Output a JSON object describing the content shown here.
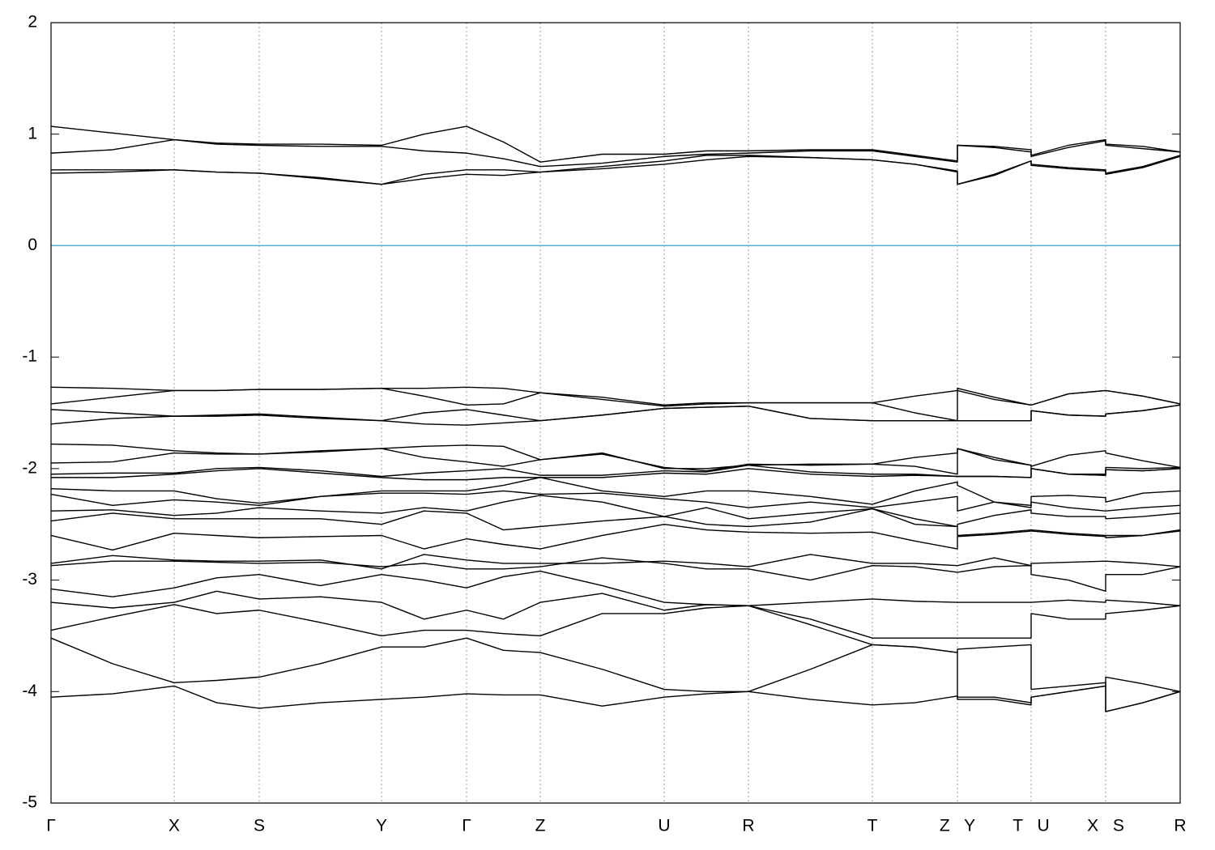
{
  "chart_data": {
    "type": "line",
    "color": "#000000",
    "grid_x": true,
    "reference_line": {
      "value": 0,
      "color": "#4fb3d0"
    },
    "xlim": [
      0,
      13.94
    ],
    "xticks": [
      {
        "value": 0,
        "label": "Γ"
      },
      {
        "value": 1.52,
        "label": "X"
      },
      {
        "value": 2.57,
        "label": "S"
      },
      {
        "value": 4.08,
        "label": "Y"
      },
      {
        "value": 5.13,
        "label": "Γ"
      },
      {
        "value": 6.04,
        "label": "Z"
      },
      {
        "value": 7.57,
        "label": "U"
      },
      {
        "value": 8.61,
        "label": "R"
      },
      {
        "value": 10.14,
        "label": "T"
      },
      {
        "value": 11.19,
        "label": "Z Y"
      },
      {
        "value": 12.1,
        "label": "T U"
      },
      {
        "value": 13.02,
        "label": "X S"
      },
      {
        "value": 13.94,
        "label": "R"
      }
    ],
    "ylim": [
      -5,
      2
    ],
    "yticks": [
      -5,
      -4,
      -3,
      -2,
      -1,
      0,
      1,
      2
    ],
    "x": [
      0,
      0.76,
      1.52,
      2.045,
      2.57,
      3.325,
      4.08,
      4.605,
      5.13,
      5.585,
      6.04,
      6.805,
      7.57,
      8.09,
      8.61,
      9.375,
      10.14,
      10.665,
      11.19,
      11.19,
      11.645,
      12.1,
      12.1,
      12.56,
      13.02,
      13.02,
      13.48,
      13.94
    ],
    "series": [
      {
        "values": [
          1.07,
          1.01,
          0.95,
          0.92,
          0.91,
          0.91,
          0.9,
          1.0,
          1.07,
          0.93,
          0.75,
          0.82,
          0.82,
          0.85,
          0.85,
          0.86,
          0.86,
          0.81,
          0.76,
          0.9,
          0.89,
          0.86,
          0.81,
          0.9,
          0.95,
          0.91,
          0.89,
          0.84
        ]
      },
      {
        "values": [
          0.83,
          0.86,
          0.95,
          0.91,
          0.9,
          0.89,
          0.89,
          0.85,
          0.83,
          0.78,
          0.71,
          0.74,
          0.8,
          0.82,
          0.83,
          0.85,
          0.85,
          0.8,
          0.75,
          0.9,
          0.88,
          0.84,
          0.8,
          0.88,
          0.94,
          0.9,
          0.87,
          0.84
        ]
      },
      {
        "values": [
          0.68,
          0.68,
          0.68,
          0.66,
          0.65,
          0.61,
          0.55,
          0.64,
          0.68,
          0.68,
          0.66,
          0.71,
          0.76,
          0.81,
          0.81,
          0.79,
          0.77,
          0.73,
          0.67,
          0.55,
          0.64,
          0.76,
          0.73,
          0.7,
          0.68,
          0.65,
          0.71,
          0.81
        ]
      },
      {
        "values": [
          0.65,
          0.66,
          0.68,
          0.66,
          0.65,
          0.6,
          0.55,
          0.6,
          0.64,
          0.63,
          0.66,
          0.69,
          0.73,
          0.77,
          0.8,
          0.79,
          0.77,
          0.73,
          0.66,
          0.55,
          0.63,
          0.76,
          0.72,
          0.69,
          0.67,
          0.64,
          0.7,
          0.8
        ]
      },
      {
        "values": [
          -1.27,
          -1.28,
          -1.3,
          -1.3,
          -1.29,
          -1.29,
          -1.28,
          -1.28,
          -1.27,
          -1.28,
          -1.32,
          -1.38,
          -1.44,
          -1.42,
          -1.41,
          -1.41,
          -1.41,
          -1.35,
          -1.3,
          -1.28,
          -1.36,
          -1.43,
          -1.43,
          -1.33,
          -1.3,
          -1.3,
          -1.35,
          -1.42
        ]
      },
      {
        "values": [
          -1.42,
          -1.36,
          -1.3,
          -1.3,
          -1.29,
          -1.29,
          -1.28,
          -1.35,
          -1.43,
          -1.42,
          -1.32,
          -1.36,
          -1.43,
          -1.41,
          -1.41,
          -1.41,
          -1.41,
          -1.5,
          -1.57,
          -1.57,
          -1.57,
          -1.57,
          -1.48,
          -1.52,
          -1.53,
          -1.51,
          -1.48,
          -1.43
        ]
      },
      {
        "values": [
          -1.47,
          -1.5,
          -1.53,
          -1.53,
          -1.52,
          -1.55,
          -1.57,
          -1.5,
          -1.47,
          -1.52,
          -1.57,
          -1.52,
          -1.46,
          -1.45,
          -1.44,
          -1.55,
          -1.57,
          -1.57,
          -1.57,
          -1.3,
          -1.38,
          -1.43,
          -1.43,
          -1.33,
          -1.3,
          -1.3,
          -1.35,
          -1.42
        ]
      },
      {
        "values": [
          -1.6,
          -1.55,
          -1.53,
          -1.52,
          -1.51,
          -1.54,
          -1.57,
          -1.6,
          -1.61,
          -1.59,
          -1.57,
          -1.52,
          -1.46,
          -1.45,
          -1.44,
          -1.55,
          -1.57,
          -1.57,
          -1.57,
          -1.57,
          -1.57,
          -1.57,
          -1.48,
          -1.52,
          -1.53,
          -1.51,
          -1.48,
          -1.43
        ]
      },
      {
        "values": [
          -1.78,
          -1.79,
          -1.84,
          -1.86,
          -1.87,
          -1.84,
          -1.82,
          -1.8,
          -1.79,
          -1.8,
          -1.92,
          -1.87,
          -1.99,
          -2.02,
          -1.96,
          -1.97,
          -1.96,
          -1.9,
          -1.86,
          -1.82,
          -1.92,
          -1.97,
          -1.98,
          -1.88,
          -1.84,
          -1.86,
          -1.93,
          -1.99
        ]
      },
      {
        "values": [
          -1.95,
          -1.94,
          -1.86,
          -1.87,
          -1.87,
          -1.85,
          -1.82,
          -1.9,
          -1.94,
          -1.98,
          -1.92,
          -1.86,
          -2.0,
          -2.0,
          -1.97,
          -1.96,
          -1.96,
          -1.98,
          -2.05,
          -1.82,
          -1.9,
          -1.97,
          -2.0,
          -2.05,
          -2.05,
          -1.99,
          -2.0,
          -1.99
        ]
      },
      {
        "values": [
          -2.05,
          -2.04,
          -2.04,
          -2.0,
          -1.99,
          -2.02,
          -2.07,
          -2.04,
          -2.02,
          -2.0,
          -2.06,
          -2.06,
          -2.02,
          -2.03,
          -1.97,
          -2.03,
          -2.05,
          -2.05,
          -2.07,
          -2.07,
          -2.07,
          -2.08,
          -2.0,
          -2.05,
          -2.06,
          -2.01,
          -2.02,
          -2.0
        ]
      },
      {
        "values": [
          -2.08,
          -2.08,
          -2.05,
          -2.02,
          -2.0,
          -2.04,
          -2.08,
          -2.1,
          -2.1,
          -2.08,
          -2.08,
          -2.08,
          -2.04,
          -2.05,
          -2.0,
          -2.05,
          -2.07,
          -2.06,
          -2.07,
          -2.07,
          -2.07,
          -2.08,
          -2.0,
          -2.05,
          -2.06,
          -2.01,
          -2.02,
          -2.0
        ]
      },
      {
        "values": [
          -2.18,
          -2.2,
          -2.2,
          -2.27,
          -2.31,
          -2.25,
          -2.2,
          -2.2,
          -2.2,
          -2.15,
          -2.08,
          -2.2,
          -2.25,
          -2.2,
          -2.2,
          -2.25,
          -2.32,
          -2.2,
          -2.12,
          -2.15,
          -2.3,
          -2.33,
          -2.25,
          -2.24,
          -2.26,
          -2.3,
          -2.22,
          -2.2
        ]
      },
      {
        "values": [
          -2.23,
          -2.33,
          -2.28,
          -2.3,
          -2.33,
          -2.25,
          -2.22,
          -2.22,
          -2.23,
          -2.2,
          -2.23,
          -2.22,
          -2.27,
          -2.3,
          -2.35,
          -2.3,
          -2.35,
          -2.3,
          -2.25,
          -2.38,
          -2.3,
          -2.35,
          -2.3,
          -2.35,
          -2.38,
          -2.38,
          -2.35,
          -2.33
        ]
      },
      {
        "values": [
          -2.38,
          -2.37,
          -2.42,
          -2.4,
          -2.35,
          -2.38,
          -2.4,
          -2.35,
          -2.38,
          -2.3,
          -2.24,
          -2.3,
          -2.43,
          -2.5,
          -2.52,
          -2.48,
          -2.36,
          -2.45,
          -2.52,
          -2.5,
          -2.42,
          -2.37,
          -2.4,
          -2.43,
          -2.43,
          -2.45,
          -2.43,
          -2.4
        ]
      },
      {
        "values": [
          -2.47,
          -2.4,
          -2.45,
          -2.45,
          -2.45,
          -2.45,
          -2.5,
          -2.38,
          -2.4,
          -2.55,
          -2.52,
          -2.47,
          -2.43,
          -2.35,
          -2.45,
          -2.4,
          -2.36,
          -2.5,
          -2.52,
          -2.6,
          -2.58,
          -2.55,
          -2.55,
          -2.58,
          -2.6,
          -2.6,
          -2.6,
          -2.55
        ]
      },
      {
        "values": [
          -2.6,
          -2.73,
          -2.58,
          -2.6,
          -2.62,
          -2.61,
          -2.6,
          -2.72,
          -2.63,
          -2.68,
          -2.72,
          -2.6,
          -2.5,
          -2.55,
          -2.57,
          -2.58,
          -2.57,
          -2.65,
          -2.72,
          -2.61,
          -2.59,
          -2.56,
          -2.56,
          -2.59,
          -2.61,
          -2.62,
          -2.6,
          -2.56
        ]
      },
      {
        "values": [
          -2.85,
          -2.78,
          -2.82,
          -2.83,
          -2.83,
          -2.82,
          -2.9,
          -2.77,
          -2.82,
          -2.85,
          -2.85,
          -2.85,
          -2.83,
          -2.85,
          -2.88,
          -2.77,
          -2.85,
          -2.85,
          -2.87,
          -2.87,
          -2.8,
          -2.87,
          -2.85,
          -2.84,
          -2.83,
          -2.83,
          -2.85,
          -2.88
        ]
      },
      {
        "values": [
          -2.87,
          -2.83,
          -2.83,
          -2.84,
          -2.85,
          -2.84,
          -2.88,
          -2.85,
          -2.9,
          -2.9,
          -2.88,
          -2.8,
          -2.85,
          -2.9,
          -2.9,
          -3.0,
          -2.87,
          -2.88,
          -2.93,
          -2.93,
          -2.88,
          -2.87,
          -2.95,
          -3.0,
          -3.1,
          -2.95,
          -2.95,
          -2.88
        ]
      },
      {
        "values": [
          -3.08,
          -3.15,
          -3.07,
          -2.98,
          -2.95,
          -3.05,
          -2.95,
          -3.0,
          -3.07,
          -2.97,
          -2.92,
          -3.05,
          -3.2,
          -3.22,
          -3.23,
          -3.2,
          -3.17,
          -3.19,
          -3.2,
          -3.2,
          -3.2,
          -3.2,
          -3.2,
          -3.18,
          -3.2,
          -3.18,
          -3.2,
          -3.23
        ]
      },
      {
        "values": [
          -3.2,
          -3.25,
          -3.2,
          -3.1,
          -3.17,
          -3.15,
          -3.2,
          -3.35,
          -3.27,
          -3.35,
          -3.2,
          -3.12,
          -3.27,
          -3.22,
          -3.23,
          -3.35,
          -3.52,
          -3.52,
          -3.52,
          -3.52,
          -3.52,
          -3.52,
          -3.3,
          -3.35,
          -3.35,
          -3.3,
          -3.27,
          -3.23
        ]
      },
      {
        "values": [
          -3.45,
          -3.33,
          -3.22,
          -3.3,
          -3.27,
          -3.38,
          -3.5,
          -3.45,
          -3.45,
          -3.48,
          -3.5,
          -3.3,
          -3.3,
          -3.25,
          -3.23,
          -3.4,
          -3.58,
          -3.6,
          -3.65,
          -3.62,
          -3.6,
          -3.58,
          -3.98,
          -3.95,
          -3.92,
          -4.18,
          -4.1,
          -4.0
        ]
      },
      {
        "values": [
          -3.52,
          -3.75,
          -3.92,
          -3.9,
          -3.87,
          -3.75,
          -3.6,
          -3.6,
          -3.52,
          -3.63,
          -3.65,
          -3.8,
          -3.98,
          -4.0,
          -4.0,
          -3.8,
          -3.58,
          -3.6,
          -3.65,
          -4.05,
          -4.05,
          -4.1,
          -4.05,
          -4.0,
          -3.95,
          -3.87,
          -3.93,
          -4.0
        ]
      },
      {
        "values": [
          -4.05,
          -4.02,
          -3.95,
          -4.1,
          -4.15,
          -4.1,
          -4.07,
          -4.05,
          -4.02,
          -4.03,
          -4.03,
          -4.13,
          -4.05,
          -4.02,
          -4.0,
          -4.07,
          -4.12,
          -4.1,
          -4.04,
          -4.07,
          -4.07,
          -4.12,
          -4.05,
          -4.0,
          -3.95,
          -4.18,
          -4.1,
          -4.0
        ]
      }
    ]
  }
}
